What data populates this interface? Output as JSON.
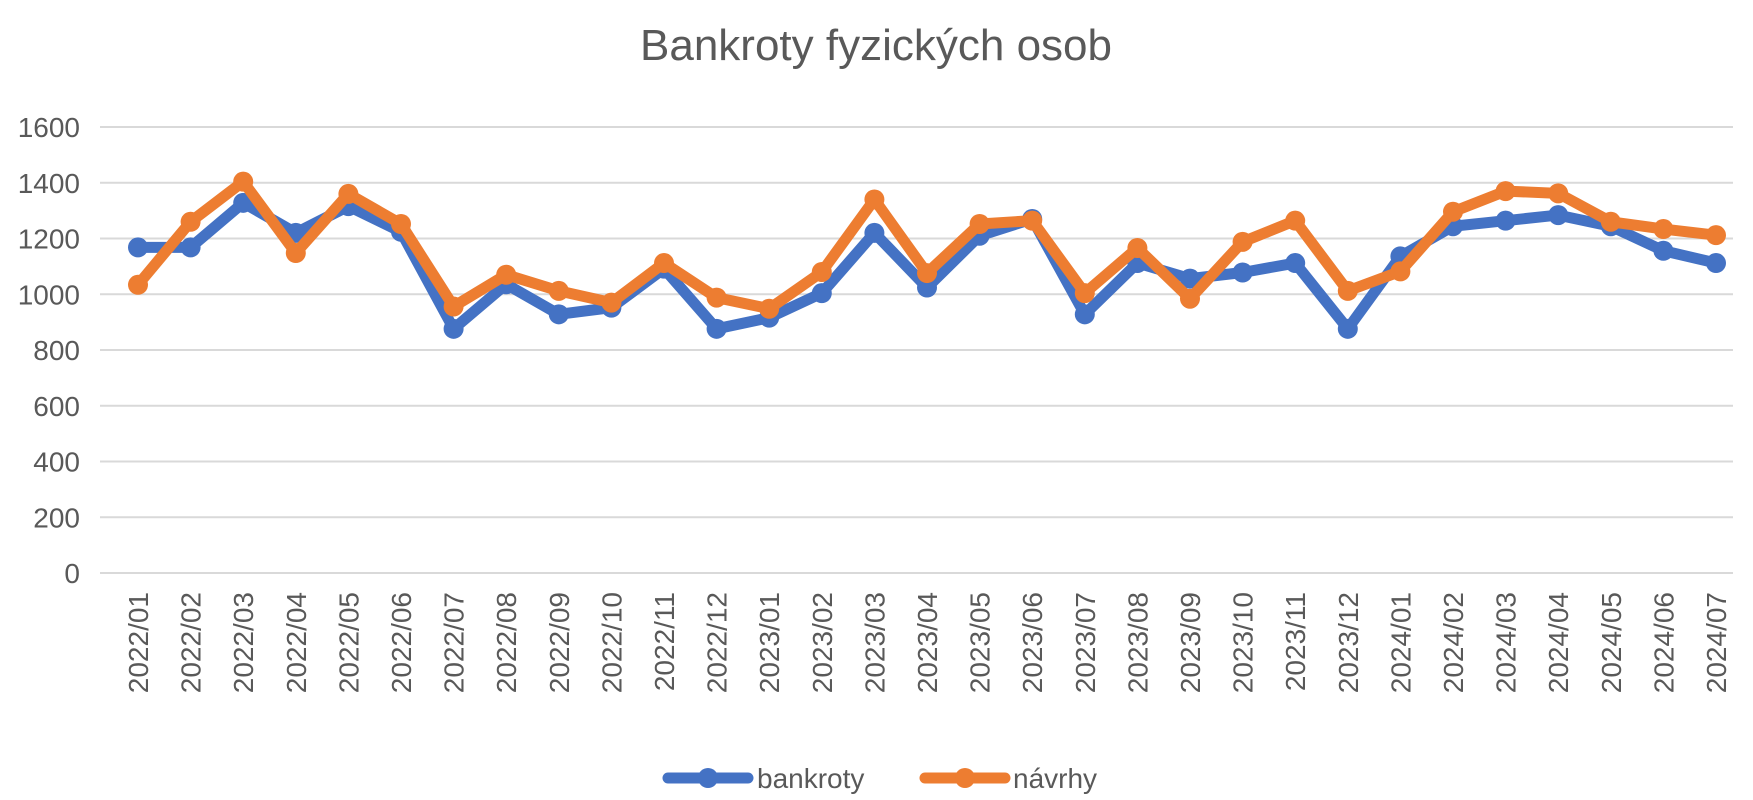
{
  "chart_data": {
    "type": "line",
    "title": "Bankroty fyzických osob",
    "xlabel": "",
    "ylabel": "",
    "ylim": [
      0,
      1600
    ],
    "yticks": [
      0,
      200,
      400,
      600,
      800,
      1000,
      1200,
      1400,
      1600
    ],
    "grid": true,
    "legend_position": "bottom",
    "categories": [
      "2022/01",
      "2022/02",
      "2022/03",
      "2022/04",
      "2022/05",
      "2022/06",
      "2022/07",
      "2022/08",
      "2022/09",
      "2022/10",
      "2022/11",
      "2022/12",
      "2023/01",
      "2023/02",
      "2023/03",
      "2023/04",
      "2023/05",
      "2023/06",
      "2023/07",
      "2023/08",
      "2023/09",
      "2023/10",
      "2023/11",
      "2023/12",
      "2024/01",
      "2024/02",
      "2024/03",
      "2024/04",
      "2024/05",
      "2024/06",
      "2024/07"
    ],
    "series": [
      {
        "name": "bankroty",
        "color": "#4472c4",
        "values": [
          1168,
          1168,
          1328,
          1220,
          1316,
          1224,
          876,
          1036,
          928,
          952,
          1092,
          876,
          916,
          1004,
          1220,
          1024,
          1210,
          1270,
          928,
          1112,
          1056,
          1078,
          1112,
          876,
          1136,
          1244,
          1264,
          1284,
          1244,
          1156,
          1112
        ]
      },
      {
        "name": "návrhy",
        "color": "#ed7d31",
        "values": [
          1034,
          1260,
          1404,
          1148,
          1360,
          1252,
          956,
          1070,
          1012,
          970,
          1112,
          988,
          948,
          1080,
          1340,
          1076,
          1252,
          1264,
          1004,
          1166,
          984,
          1188,
          1264,
          1012,
          1082,
          1296,
          1370,
          1362,
          1260,
          1234,
          1212
        ]
      }
    ]
  }
}
